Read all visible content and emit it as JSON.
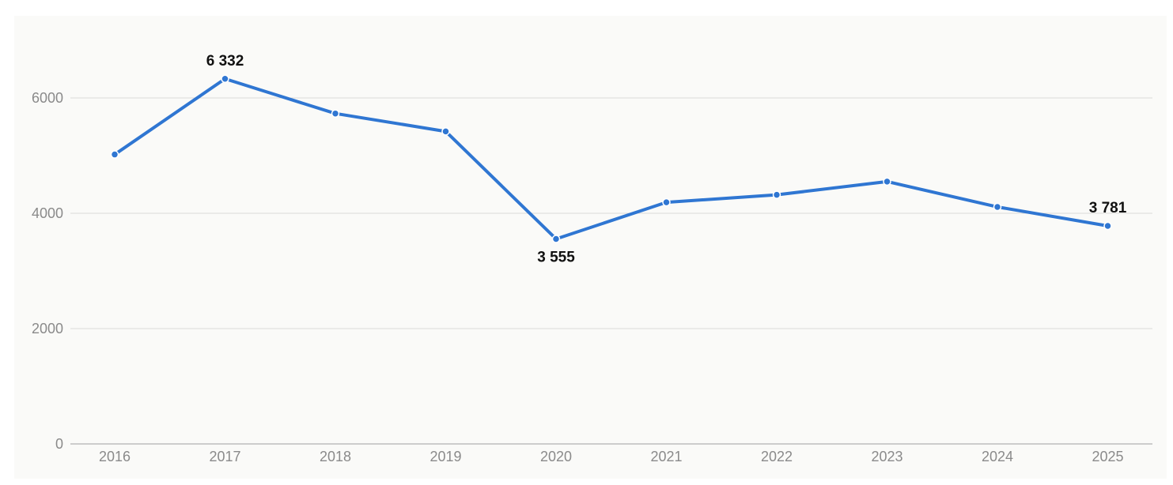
{
  "chart_data": {
    "type": "line",
    "title": "",
    "xlabel": "",
    "ylabel": "",
    "categories": [
      "2016",
      "2017",
      "2018",
      "2019",
      "2020",
      "2021",
      "2022",
      "2023",
      "2024",
      "2025"
    ],
    "series": [
      {
        "values": [
          5020,
          6332,
          5730,
          5420,
          3555,
          4190,
          4320,
          4550,
          4110,
          3781
        ],
        "color": "#2f76d2"
      }
    ],
    "ylim": [
      0,
      7500
    ],
    "yticks": [
      "0",
      "2000",
      "4000",
      "6000"
    ],
    "ytick_values": [
      0,
      2000,
      4000,
      6000
    ],
    "data_labels": [
      {
        "index": 1,
        "text": "6 332",
        "placement": "above"
      },
      {
        "index": 4,
        "text": "3 555",
        "placement": "below"
      },
      {
        "index": 9,
        "text": "3 781",
        "placement": "above"
      }
    ],
    "grid": true,
    "legend": "none"
  }
}
